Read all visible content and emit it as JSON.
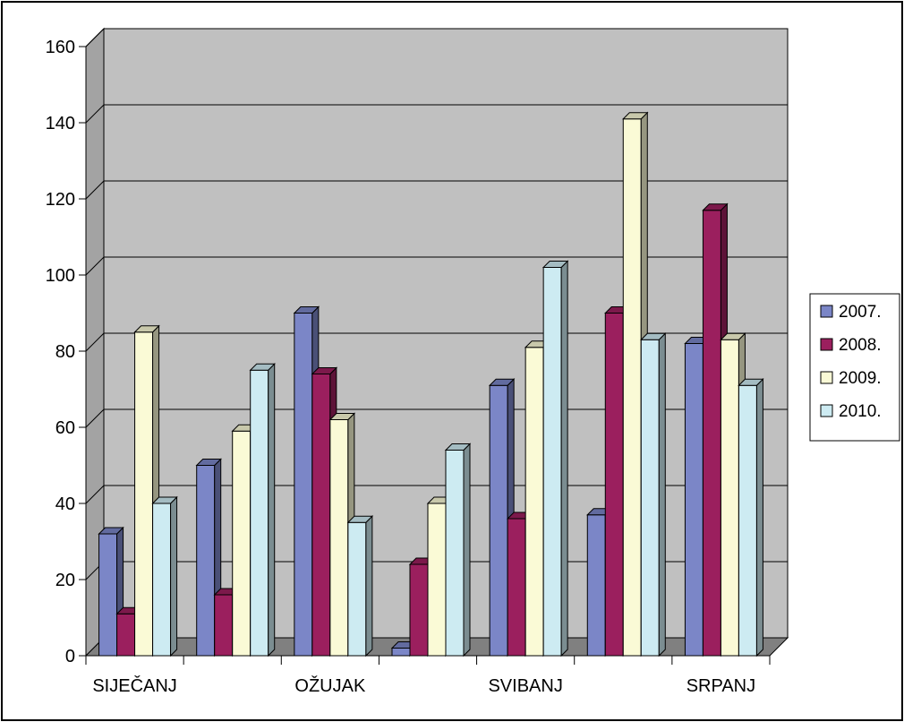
{
  "chart_data": {
    "type": "bar",
    "categories": [
      "SIJEČANJ",
      "",
      "OŽUJAK",
      "",
      "SVIBANJ",
      "",
      "SRPANJ"
    ],
    "series": [
      {
        "name": "2007.",
        "color": "#7b86c7",
        "values": [
          32,
          50,
          90,
          2,
          71,
          37,
          82
        ]
      },
      {
        "name": "2008.",
        "color": "#9b1f5e",
        "values": [
          11,
          16,
          74,
          24,
          36,
          90,
          117
        ]
      },
      {
        "name": "2009.",
        "color": "#fafad6",
        "values": [
          85,
          59,
          62,
          40,
          81,
          141,
          83
        ]
      },
      {
        "name": "2010.",
        "color": "#cdebf2",
        "values": [
          40,
          75,
          35,
          54,
          102,
          83,
          71
        ]
      }
    ],
    "yticks": [
      "0",
      "20",
      "40",
      "60",
      "80",
      "100",
      "120",
      "140",
      "160"
    ],
    "ylim": [
      0,
      160
    ],
    "grid": true,
    "legend": "right",
    "wall_color": "#c0c0c0",
    "floor_color": "#808080"
  }
}
